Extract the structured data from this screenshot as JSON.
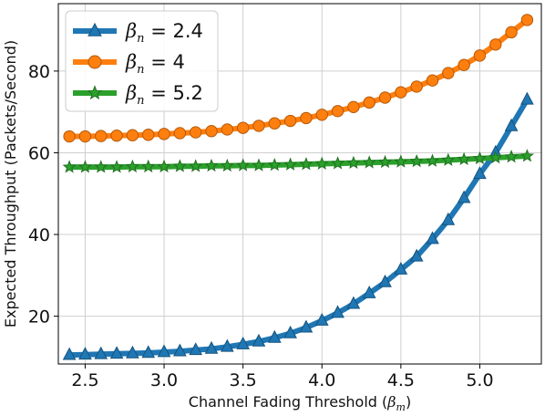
{
  "chart_data": {
    "type": "line",
    "xlabel": "Channel Fading Threshold (",
    "xlabel_symbol": "β",
    "xlabel_sub": "m",
    "xlabel_end": ")",
    "ylabel": "Expected Throughput (Packets/Second)",
    "xlim": [
      2.33,
      5.39
    ],
    "ylim": [
      8.3,
      96.5
    ],
    "x_ticks": [
      2.5,
      3.0,
      3.5,
      4.0,
      4.5,
      5.0
    ],
    "x_tick_labels": [
      "2.5",
      "3.0",
      "3.5",
      "4.0",
      "4.5",
      "5.0"
    ],
    "y_ticks": [
      20,
      40,
      60,
      80
    ],
    "y_tick_labels": [
      "20",
      "40",
      "60",
      "80"
    ],
    "grid": true,
    "legend_position": "top-left",
    "x": [
      2.4,
      2.5,
      2.6,
      2.7,
      2.8,
      2.9,
      3.0,
      3.1,
      3.2,
      3.3,
      3.4,
      3.5,
      3.6,
      3.7,
      3.8,
      3.9,
      4.0,
      4.1,
      4.2,
      4.3,
      4.4,
      4.5,
      4.6,
      4.7,
      4.8,
      4.9,
      5.0,
      5.1,
      5.2,
      5.3
    ],
    "series": [
      {
        "legend_symbol": "β",
        "legend_sub": "n",
        "legend_value": " = 2.4",
        "color": "#1f77b4",
        "marker": "triangle",
        "values": [
          10.5,
          10.6,
          10.7,
          10.8,
          10.9,
          11.0,
          11.2,
          11.4,
          11.7,
          12.0,
          12.5,
          13.1,
          13.8,
          14.7,
          15.8,
          17.2,
          18.9,
          20.8,
          23.0,
          25.6,
          28.3,
          31.4,
          34.6,
          38.9,
          43.5,
          48.9,
          54.8,
          60.0,
          66.5,
          73.0
        ]
      },
      {
        "legend_symbol": "β",
        "legend_sub": "n",
        "legend_value": " = 4",
        "color": "#ff7f0e",
        "marker": "circle",
        "values": [
          64.0,
          64.0,
          64.1,
          64.2,
          64.3,
          64.4,
          64.6,
          64.8,
          65.0,
          65.3,
          65.7,
          66.1,
          66.6,
          67.2,
          67.8,
          68.5,
          69.3,
          70.2,
          71.2,
          72.3,
          73.5,
          74.8,
          76.2,
          77.7,
          79.5,
          81.5,
          83.8,
          86.5,
          89.5,
          92.5
        ]
      },
      {
        "legend_symbol": "β",
        "legend_sub": "n",
        "legend_value": " = 5.2",
        "color": "#2ca02c",
        "marker": "star",
        "values": [
          56.5,
          56.5,
          56.5,
          56.5,
          56.6,
          56.6,
          56.6,
          56.7,
          56.7,
          56.8,
          56.8,
          56.9,
          56.9,
          57.0,
          57.1,
          57.2,
          57.3,
          57.4,
          57.5,
          57.6,
          57.7,
          57.8,
          57.9,
          58.0,
          58.2,
          58.4,
          58.6,
          58.8,
          59.0,
          59.2
        ]
      }
    ]
  }
}
